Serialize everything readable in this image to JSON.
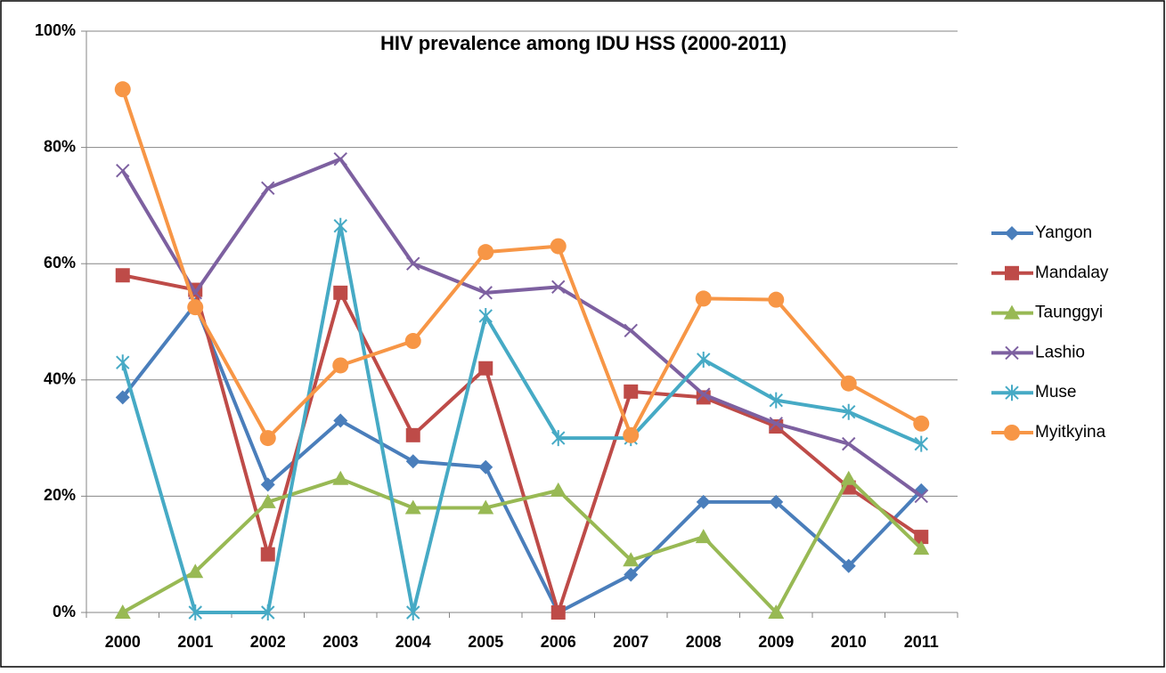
{
  "chart_data": {
    "type": "line",
    "title": "HIV prevalence among IDU HSS (2000-2011)",
    "categories": [
      "2000",
      "2001",
      "2002",
      "2003",
      "2004",
      "2005",
      "2006",
      "2007",
      "2008",
      "2009",
      "2010",
      "2011"
    ],
    "ylim": [
      0,
      100
    ],
    "yticks": [
      {
        "value": 0,
        "label": "0%"
      },
      {
        "value": 20,
        "label": "20%"
      },
      {
        "value": 40,
        "label": "40%"
      },
      {
        "value": 60,
        "label": "60%"
      },
      {
        "value": 80,
        "label": "80%"
      },
      {
        "value": 100,
        "label": "100%"
      }
    ],
    "grid": true,
    "legend": "right",
    "series": [
      {
        "name": "Yangon",
        "color": "#4a7ebb",
        "marker": "diamond",
        "values": [
          37,
          53,
          22,
          33,
          26,
          25,
          0,
          6.5,
          19,
          19,
          8,
          21
        ]
      },
      {
        "name": "Mandalay",
        "color": "#be4b48",
        "marker": "square",
        "values": [
          58,
          55.5,
          10,
          55,
          30.5,
          42,
          0,
          38,
          37,
          32,
          21.5,
          13
        ]
      },
      {
        "name": "Taunggyi",
        "color": "#98b954",
        "marker": "triangle",
        "values": [
          0,
          7,
          19,
          23,
          18,
          18,
          21,
          9,
          13,
          0,
          23,
          11
        ]
      },
      {
        "name": "Lashio",
        "color": "#7d60a0",
        "marker": "x",
        "values": [
          76,
          55,
          73,
          78,
          60,
          55,
          56,
          48.5,
          37.5,
          32.5,
          29,
          20
        ]
      },
      {
        "name": "Muse",
        "color": "#46aac5",
        "marker": "star",
        "values": [
          43,
          0,
          0,
          66.5,
          0,
          51,
          30,
          30,
          43.5,
          36.5,
          34.5,
          29
        ]
      },
      {
        "name": "Myitkyina",
        "color": "#f79646",
        "marker": "circle",
        "values": [
          90,
          52.5,
          30,
          42.5,
          46.7,
          62,
          63,
          30.5,
          54,
          53.8,
          39.4,
          32.5
        ]
      }
    ]
  }
}
